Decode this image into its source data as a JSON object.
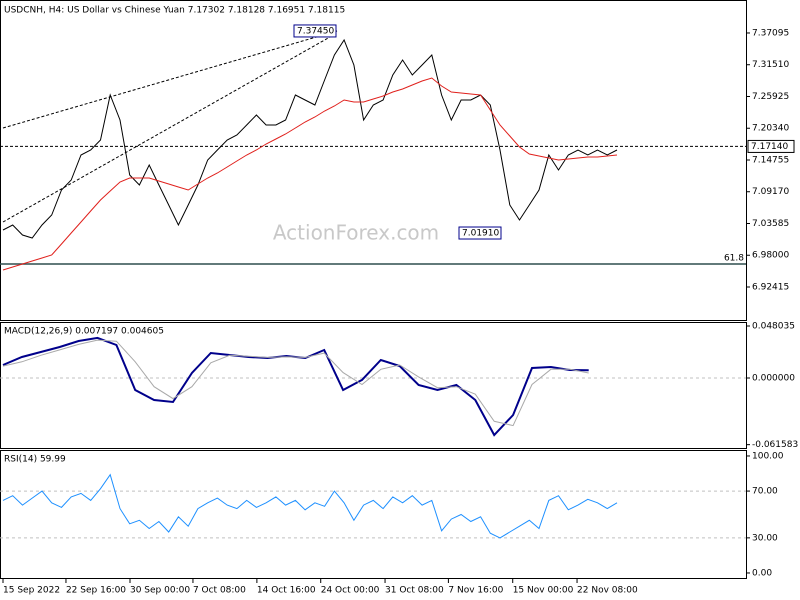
{
  "chart_data": [
    {
      "type": "line",
      "title": "USDCNH, H4:  US Dollar vs Chinese Yuan  7.17302 7.18128 7.16951 7.18115",
      "watermark": "ActionForex.com",
      "xlim": [
        0,
        63
      ],
      "xticks": [
        {
          "value": 0,
          "label": "15 Sep 2022"
        },
        {
          "value": 6.46,
          "label": "22 Sep 16:00"
        },
        {
          "value": 13.03,
          "label": "30 Sep 00:00"
        },
        {
          "value": 19.49,
          "label": "7 Oct 08:00"
        },
        {
          "value": 26.05,
          "label": "14 Oct 16:00"
        },
        {
          "value": 32.6,
          "label": "24 Oct 00:00"
        },
        {
          "value": 39.2,
          "label": "31 Oct 08:00"
        },
        {
          "value": 45.7,
          "label": "7 Nov 16:00"
        },
        {
          "value": 52.3,
          "label": "15 Nov 00:00"
        },
        {
          "value": 58.9,
          "label": "22 Nov 08:00"
        }
      ],
      "ylim": [
        6.8661,
        7.4272
      ],
      "yticks": [
        7.37095,
        {
          "value": 7.3151,
          "label": "7.31510"
        },
        7.25925,
        {
          "value": 7.2034,
          "label": "7.20340"
        },
        7.14755,
        {
          "value": 7.0917,
          "label": "7.09170"
        },
        7.03585,
        {
          "value": 6.98,
          "label": "6.98000"
        },
        6.92415
      ],
      "series": [
        {
          "color": "#000000",
          "values": [
            7.0244,
            7.0332,
            7.0156,
            7.0103,
            7.0332,
            7.0508,
            7.0948,
            7.1124,
            7.1563,
            7.1651,
            7.1827,
            7.2619,
            7.2179,
            7.1212,
            7.1036,
            7.1388,
            7.1036,
            7.0684,
            7.0332,
            7.0684,
            7.1036,
            7.1476,
            7.1651,
            7.1827,
            7.1915,
            7.2091,
            7.2267,
            7.2091,
            7.2091,
            7.2179,
            7.2619,
            7.2531,
            7.2443,
            7.2883,
            7.3322,
            7.3586,
            7.3147,
            7.2179,
            7.2443,
            7.2531,
            7.2971,
            7.3235,
            7.2971,
            7.3147,
            7.3322,
            7.2619,
            7.2179,
            7.2531,
            7.2531,
            7.2619,
            7.2443,
            7.1651,
            7.0684,
            7.042,
            7.0684,
            7.0948,
            7.1563,
            7.13,
            7.1563,
            7.1651,
            7.1563,
            7.1651,
            7.1563,
            7.1651
          ]
        },
        {
          "color": "#e0201c",
          "values": [
            6.9541,
            6.9593,
            6.9646,
            6.9699,
            6.9752,
            6.9805,
            6.9998,
            7.0192,
            7.0385,
            7.0578,
            7.0772,
            7.093,
            7.1088,
            7.1159,
            7.1159,
            7.1159,
            7.1106,
            7.1053,
            7.1001,
            7.0948,
            7.1053,
            7.1159,
            7.1247,
            7.1352,
            7.1458,
            7.1563,
            7.1651,
            7.1757,
            7.1845,
            7.1933,
            7.2038,
            7.2144,
            7.2232,
            7.2337,
            7.2425,
            7.2531,
            7.2496,
            7.2496,
            7.2549,
            7.2601,
            7.2672,
            7.2724,
            7.2795,
            7.2865,
            7.2918,
            7.2777,
            7.2672,
            7.2654,
            7.2637,
            7.2619,
            7.2355,
            7.2091,
            7.1898,
            7.1704,
            7.1581,
            7.1546,
            7.1511,
            7.1476,
            7.1493,
            7.1511,
            7.1528,
            7.1528,
            7.1546,
            7.1563
          ]
        }
      ],
      "current_price": {
        "value": 7.1714,
        "label": "7.17140"
      },
      "fib_level": {
        "value": 6.9646,
        "label": "61.8"
      },
      "annotations": [
        {
          "value": 7.3745,
          "label": "7.37450"
        },
        {
          "value": 7.0191,
          "label": "7.01910"
        }
      ]
    },
    {
      "type": "line",
      "title": "MACD(12,26,9) 0.007197 0.004605",
      "xlim": [
        0,
        32.5
      ],
      "ylim": [
        -0.06467,
        0.05173
      ],
      "yticks": [
        0.048035,
        {
          "value": 0,
          "label": "0.000000"
        },
        -0.061583
      ],
      "levels": [
        0
      ],
      "series": [
        {
          "color": "#00008b",
          "values": [
            0.012,
            0.0194,
            0.024,
            0.0286,
            0.0342,
            0.037,
            0.0305,
            -0.0111,
            -0.0203,
            -0.0222,
            0.0046,
            0.0231,
            0.0212,
            0.0194,
            0.0185,
            0.0203,
            0.0185,
            0.0259,
            -0.0111,
            -0.0018,
            0.0166,
            0.0111,
            -0.0065,
            -0.0111,
            -0.0065,
            -0.0203,
            -0.0527,
            -0.0342,
            0.0092,
            0.0102,
            0.0074,
            0.0072
          ]
        },
        {
          "color": "#a9a9a9",
          "values": [
            0.011,
            0.015,
            0.021,
            0.026,
            0.031,
            0.035,
            0.034,
            0.015,
            -0.008,
            -0.019,
            -0.008,
            0.014,
            0.021,
            0.02,
            0.019,
            0.0195,
            0.019,
            0.023,
            0.005,
            -0.006,
            0.008,
            0.012,
            0.001,
            -0.009,
            -0.008,
            -0.015,
            -0.04,
            -0.044,
            -0.006,
            0.008,
            0.008,
            0.0046
          ]
        }
      ]
    },
    {
      "type": "line",
      "title": "RSI(14) 59.99",
      "xlim": [
        0,
        63
      ],
      "ylim": [
        -4.3,
        105.1
      ],
      "yticks": [
        {
          "value": 100,
          "label": "100.00"
        },
        {
          "value": 70,
          "label": "70.00"
        },
        {
          "value": 30,
          "label": "30.00"
        },
        {
          "value": 0,
          "label": "0.00"
        }
      ],
      "levels": [
        70,
        30
      ],
      "series": [
        {
          "color": "#1e90ff",
          "values": [
            62,
            66,
            58,
            64,
            70,
            60,
            56,
            65,
            68,
            62,
            72,
            84,
            55,
            42,
            45,
            38,
            44,
            35,
            48,
            40,
            55,
            60,
            64,
            58,
            55,
            62,
            56,
            60,
            65,
            58,
            62,
            54,
            60,
            57,
            70,
            60,
            45,
            58,
            62,
            55,
            65,
            60,
            66,
            58,
            62,
            36,
            46,
            50,
            44,
            48,
            34,
            30,
            35,
            40,
            45,
            38,
            62,
            66,
            54,
            58,
            63,
            60,
            55,
            59.99
          ]
        }
      ]
    }
  ]
}
